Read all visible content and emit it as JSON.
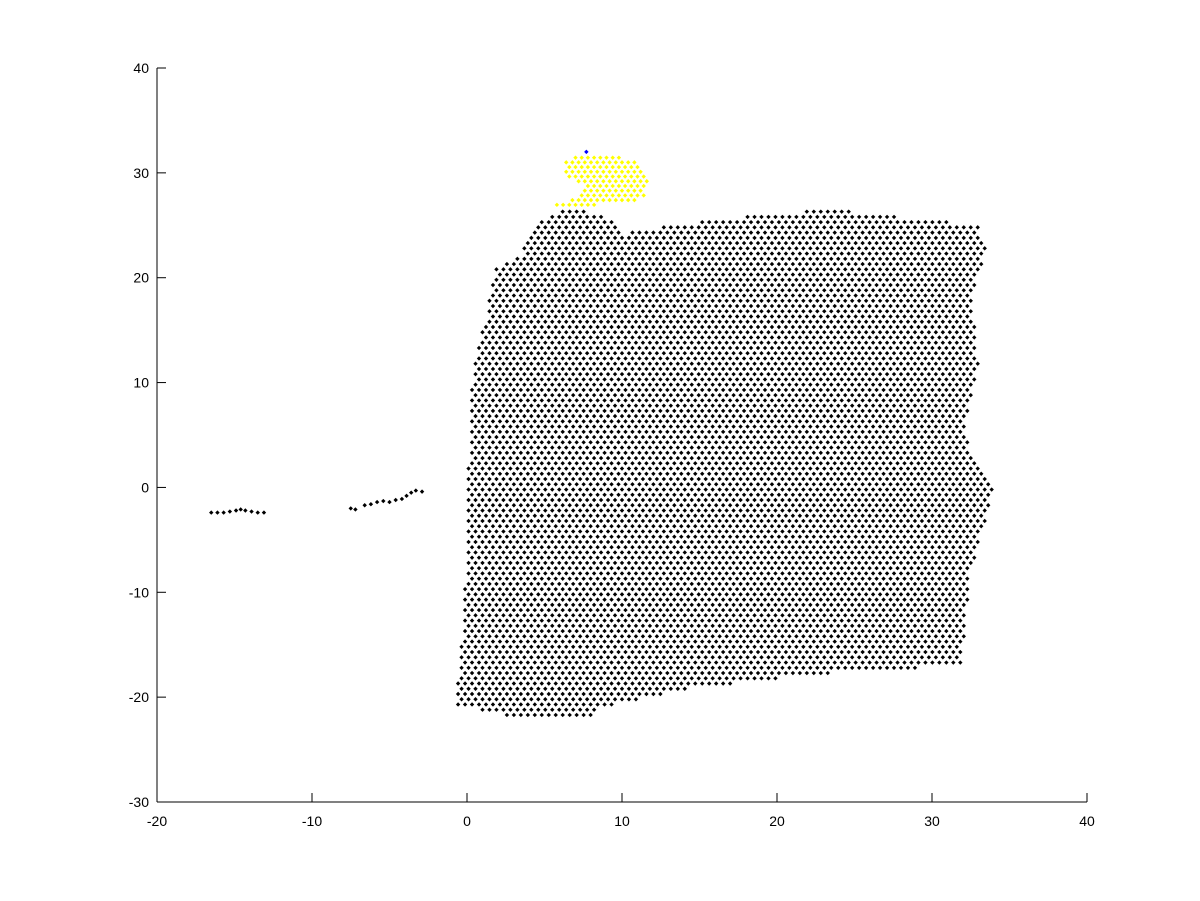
{
  "chart_data": {
    "type": "scatter",
    "title": "",
    "xlabel": "",
    "ylabel": "",
    "xlim": [
      -20,
      40
    ],
    "ylim": [
      -30,
      40
    ],
    "grid": false,
    "legend": "none",
    "x_ticks": [
      "-20",
      "-10",
      "0",
      "10",
      "20",
      "30",
      "40"
    ],
    "y_ticks": [
      "40",
      "30",
      "20",
      "10",
      "0",
      "-10",
      "-20",
      "-30"
    ],
    "colors": {
      "main": "#000000",
      "highlight": "#ffff00",
      "marker": "#0000ff"
    },
    "series": [
      {
        "kind": "region-grid",
        "color": "#000000",
        "x_spacing": 0.45,
        "y_spacing": 0.5,
        "polygon": [
          [
            -0.8,
            -20.5
          ],
          [
            -0.5,
            -18
          ],
          [
            -0.2,
            -12
          ],
          [
            0.0,
            -5
          ],
          [
            0.1,
            2
          ],
          [
            0.2,
            8
          ],
          [
            0.5,
            12
          ],
          [
            1.2,
            16
          ],
          [
            1.8,
            21
          ],
          [
            3.5,
            22
          ],
          [
            4.0,
            24.5
          ],
          [
            6.0,
            26.5
          ],
          [
            8.5,
            26.2
          ],
          [
            9.5,
            25.5
          ],
          [
            10.0,
            24.2
          ],
          [
            13.0,
            25.0
          ],
          [
            16.5,
            25.5
          ],
          [
            19.0,
            26.0
          ],
          [
            23.5,
            26.5
          ],
          [
            26.5,
            26.0
          ],
          [
            30.0,
            25.5
          ],
          [
            33.0,
            25.0
          ],
          [
            33.5,
            22.5
          ],
          [
            32.5,
            18
          ],
          [
            33.0,
            12
          ],
          [
            32.0,
            5
          ],
          [
            34.0,
            0
          ],
          [
            33.5,
            -3
          ],
          [
            32.5,
            -8
          ],
          [
            32.0,
            -15
          ],
          [
            32.0,
            -17
          ],
          [
            25.0,
            -17.5
          ],
          [
            15.0,
            -19.0
          ],
          [
            8.5,
            -21.0
          ],
          [
            8.0,
            -22.0
          ],
          [
            4.0,
            -22.2
          ],
          [
            1.0,
            -21.2
          ],
          [
            -0.8,
            -21.0
          ]
        ]
      },
      {
        "kind": "points",
        "color": "#000000",
        "points": [
          [
            -16.5,
            -2.4
          ],
          [
            -16.1,
            -2.4
          ],
          [
            -15.7,
            -2.4
          ],
          [
            -15.3,
            -2.3
          ],
          [
            -14.9,
            -2.2
          ],
          [
            -14.6,
            -2.1
          ],
          [
            -14.3,
            -2.2
          ],
          [
            -13.9,
            -2.3
          ],
          [
            -13.5,
            -2.4
          ],
          [
            -13.1,
            -2.4
          ],
          [
            -7.5,
            -2.0
          ],
          [
            -7.2,
            -2.1
          ],
          [
            -6.6,
            -1.7
          ],
          [
            -6.2,
            -1.6
          ],
          [
            -5.8,
            -1.4
          ],
          [
            -5.4,
            -1.3
          ],
          [
            -5.0,
            -1.4
          ],
          [
            -4.6,
            -1.2
          ],
          [
            -4.2,
            -1.1
          ],
          [
            -3.9,
            -0.8
          ],
          [
            -3.6,
            -0.5
          ],
          [
            -3.3,
            -0.3
          ],
          [
            -2.9,
            -0.4
          ]
        ]
      },
      {
        "kind": "region-grid",
        "color": "#ffff00",
        "x_spacing": 0.4,
        "y_spacing": 0.45,
        "polygon": [
          [
            5.2,
            26.8
          ],
          [
            6.5,
            27.2
          ],
          [
            7.8,
            28.5
          ],
          [
            6.4,
            29.8
          ],
          [
            6.2,
            31.2
          ],
          [
            7.5,
            31.8
          ],
          [
            9.8,
            31.7
          ],
          [
            11.2,
            30.8
          ],
          [
            11.8,
            29.5
          ],
          [
            11.5,
            27.8
          ],
          [
            10.5,
            27.2
          ],
          [
            8.5,
            27.0
          ],
          [
            7.0,
            26.6
          ],
          [
            5.5,
            26.5
          ]
        ]
      },
      {
        "kind": "points",
        "color": "#0000ff",
        "points": [
          [
            7.7,
            32.0
          ]
        ]
      }
    ]
  }
}
